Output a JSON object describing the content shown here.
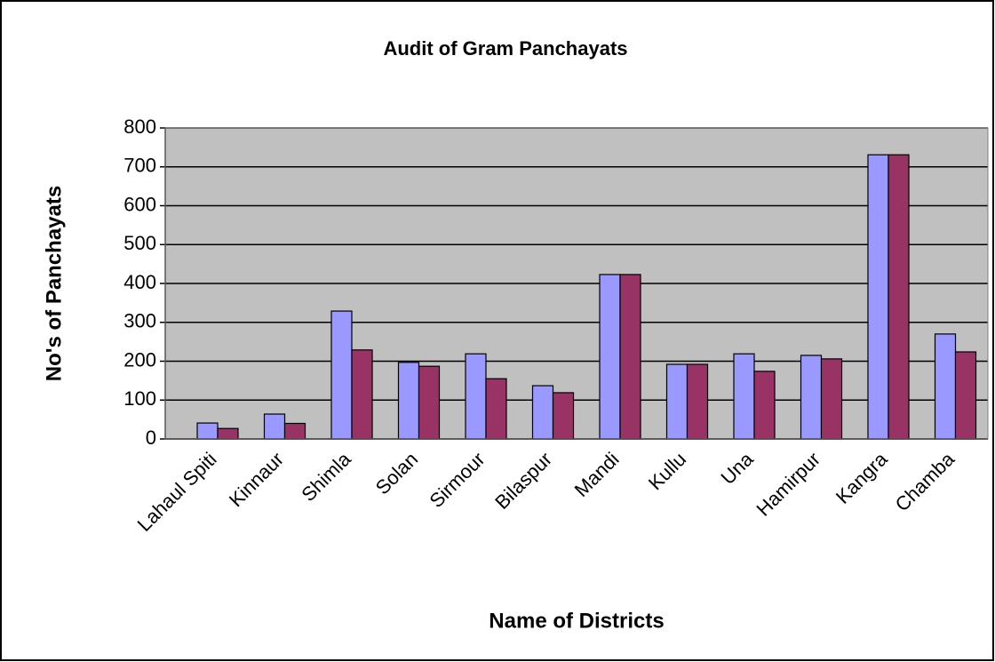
{
  "chart_data": {
    "type": "bar",
    "title": "Audit of Gram Panchayats",
    "x_label": "Name of Districts",
    "y_label": "No's of Panchayats",
    "categories": [
      "Lahaul Spiti",
      "Kinnaur",
      "Shimla",
      "Solan",
      "Sirmour",
      "Bilaspur",
      "Mandi",
      "Kullu",
      "Una",
      "Hamirpur",
      "Kangra",
      "Chamba"
    ],
    "series": [
      {
        "color": "#9999ff",
        "values": [
          41,
          64,
          329,
          197,
          219,
          137,
          423,
          192,
          219,
          215,
          731,
          270
        ]
      },
      {
        "color": "#993366",
        "values": [
          27,
          40,
          229,
          187,
          155,
          119,
          423,
          192,
          174,
          206,
          731,
          224
        ]
      }
    ],
    "ylim": [
      0,
      800
    ],
    "yticks": [
      0,
      100,
      200,
      300,
      400,
      500,
      600,
      700,
      800
    ],
    "grid": true
  }
}
